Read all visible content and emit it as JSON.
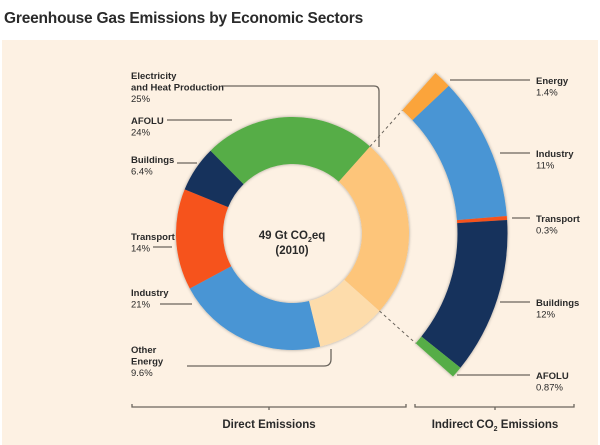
{
  "chart_data": {
    "type": "pie",
    "title": "Greenhouse Gas Emissions by Economic Sectors",
    "center_label": {
      "line1_prefix": "49 Gt CO",
      "line1_sub": "2",
      "line1_suffix": "eq",
      "line2": "(2010)"
    },
    "direct": {
      "group_label": "Direct Emissions",
      "slices": [
        {
          "name_lines": [
            "Electricity",
            "and Heat Production"
          ],
          "value": 25,
          "label": "25%",
          "color": "#fdc57a"
        },
        {
          "name_lines": [
            "Other",
            "Energy"
          ],
          "value": 9.6,
          "label": "9.6%",
          "color": "#fddcab"
        },
        {
          "name_lines": [
            "Industry"
          ],
          "value": 21,
          "label": "21%",
          "color": "#4895d4"
        },
        {
          "name_lines": [
            "Transport"
          ],
          "value": 14,
          "label": "14%",
          "color": "#f6531e"
        },
        {
          "name_lines": [
            "Buildings"
          ],
          "value": 6.4,
          "label": "6.4%",
          "color": "#15305c"
        },
        {
          "name_lines": [
            "AFOLU"
          ],
          "value": 24,
          "label": "24%",
          "color": "#56ad47"
        }
      ]
    },
    "indirect": {
      "group_label_prefix": "Indirect CO",
      "group_label_sub": "2",
      "group_label_suffix": " Emissions",
      "slices": [
        {
          "name": "Energy",
          "value": 1.4,
          "label": "1.4%",
          "color": "#fba43a"
        },
        {
          "name": "Industry",
          "value": 11,
          "label": "11%",
          "color": "#4895d4"
        },
        {
          "name": "Transport",
          "value": 0.3,
          "label": "0.3%",
          "color": "#f6531e"
        },
        {
          "name": "Buildings",
          "value": 12,
          "label": "12%",
          "color": "#15305c"
        },
        {
          "name": "AFOLU",
          "value": 0.87,
          "label": "0.87%",
          "color": "#56ad47"
        }
      ]
    },
    "units": "% of total GHG emissions (Gt CO2eq)"
  },
  "colors": {
    "panel": "#fdf1e3",
    "text": "#2a2a2a",
    "leader": "#6b655d"
  }
}
